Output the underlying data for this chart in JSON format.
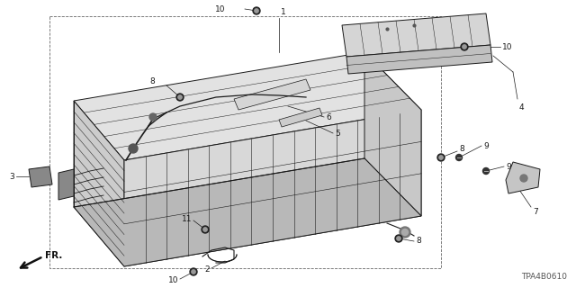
{
  "bg_color": "#ffffff",
  "fig_width": 6.4,
  "fig_height": 3.2,
  "dpi": 100,
  "diagram_code": "TPA4B0610",
  "label_fontsize": 6.5,
  "diagram_code_fontsize": 6.5,
  "line_color": "#1a1a1a",
  "dashed_color": "#555555",
  "fill_light": "#e8e8e8",
  "fill_mid": "#d0d0d0",
  "fill_dark": "#b8b8b8"
}
